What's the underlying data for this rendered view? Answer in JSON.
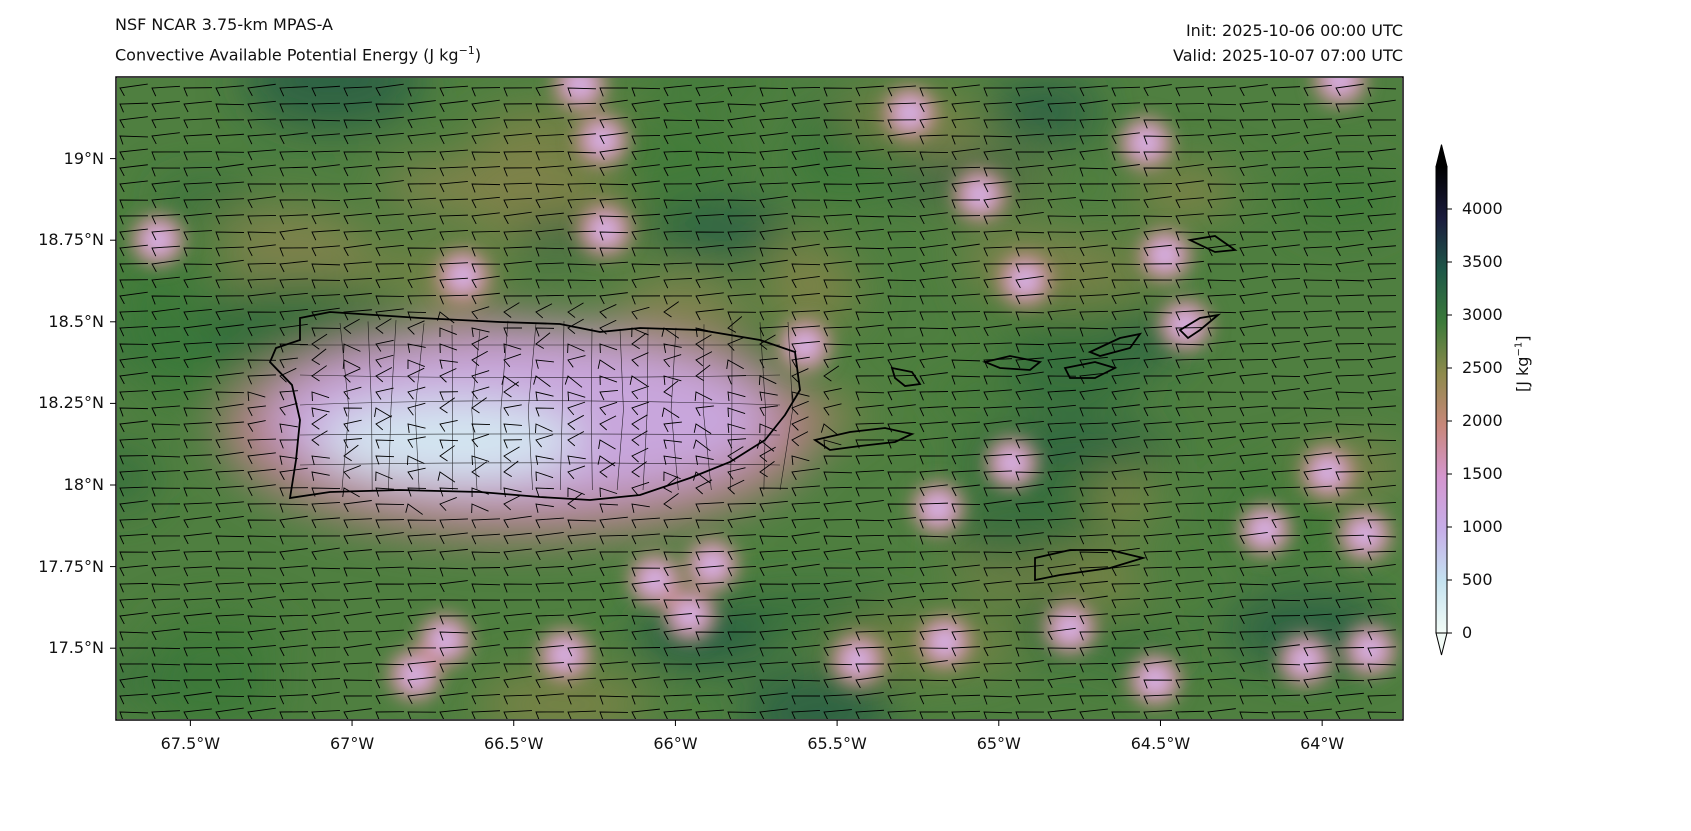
{
  "header": {
    "model": "NSF NCAR 3.75-km MPAS-A",
    "field": "Convective Available Potential Energy (J kg",
    "field_sup": "−1",
    "field_close": ")",
    "init": "Init: 2025-10-06 00:00 UTC",
    "valid": "Valid: 2025-10-07 07:00 UTC"
  },
  "chart_data": {
    "type": "heatmap",
    "title": "Convective Available Potential Energy (J kg−1)",
    "x_ticks": [
      "67.5°W",
      "67°W",
      "66.5°W",
      "66°W",
      "65.5°W",
      "65°W",
      "64.5°W",
      "64°W"
    ],
    "x_values": [
      -67.5,
      -67,
      -66.5,
      -66,
      -65.5,
      -65,
      -64.5,
      -64
    ],
    "y_ticks": [
      "19°N",
      "18.75°N",
      "18.5°N",
      "18.25°N",
      "18°N",
      "17.75°N",
      "17.5°N"
    ],
    "y_values": [
      19,
      18.75,
      18.5,
      18.25,
      18,
      17.75,
      17.5
    ],
    "xlim": [
      -67.73,
      -63.75
    ],
    "ylim": [
      17.28,
      19.25
    ],
    "overlay": "wind barbs",
    "colorbar": {
      "label": "[J kg",
      "label_sup": "−1",
      "label_close": "]",
      "ticks": [
        "0",
        "500",
        "1000",
        "1500",
        "2000",
        "2500",
        "3000",
        "3500",
        "4000"
      ],
      "tick_values": [
        0,
        500,
        1000,
        1500,
        2000,
        2500,
        3000,
        3500,
        4000
      ],
      "range": [
        0,
        4400
      ],
      "extend": "both",
      "colors": [
        "#f2fbf6",
        "#c4e2f0",
        "#c6aee8",
        "#d496cf",
        "#c8877a",
        "#8e8a4c",
        "#3c7a3a",
        "#1e5748",
        "#1b1c3e",
        "#000000"
      ]
    }
  }
}
